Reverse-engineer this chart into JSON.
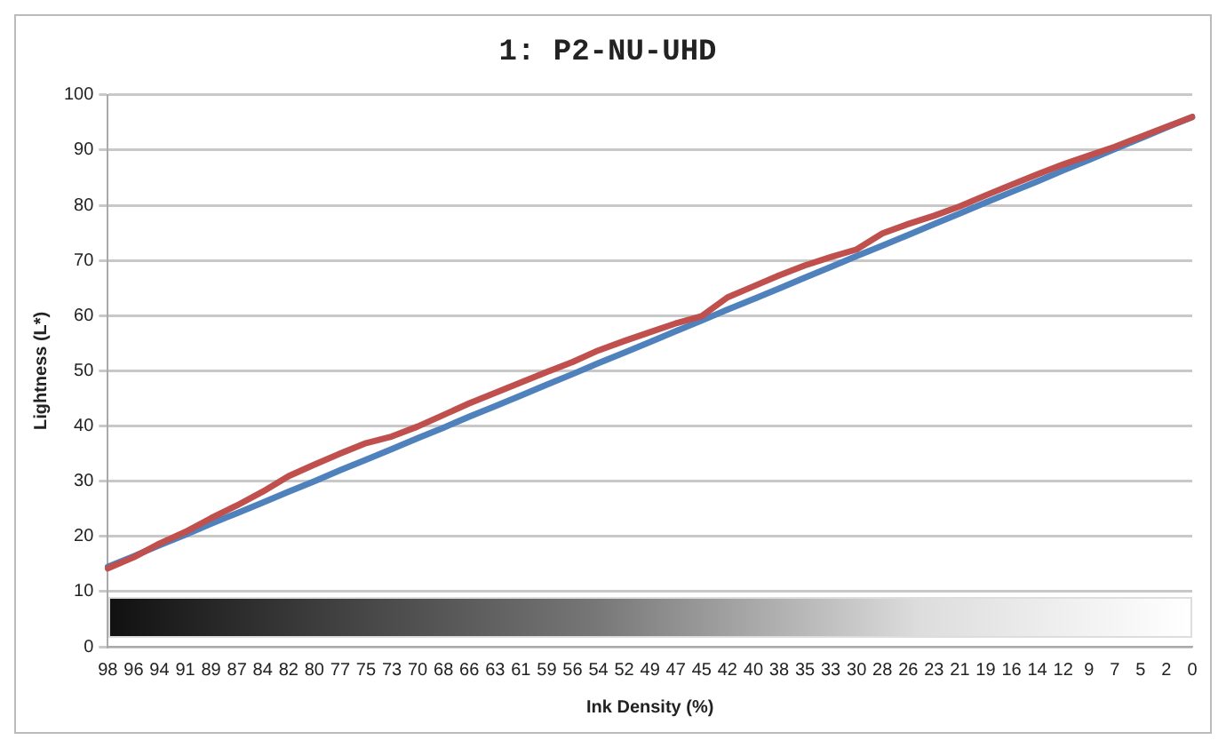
{
  "chart_data": {
    "type": "line",
    "title": "1: P2-NU-UHD",
    "xlabel": "Ink Density (%)",
    "ylabel": "Lightness (L*)",
    "categories": [
      "98",
      "96",
      "94",
      "91",
      "89",
      "87",
      "84",
      "82",
      "80",
      "77",
      "75",
      "73",
      "70",
      "68",
      "66",
      "63",
      "61",
      "59",
      "56",
      "54",
      "52",
      "49",
      "47",
      "45",
      "42",
      "40",
      "38",
      "35",
      "33",
      "30",
      "28",
      "26",
      "23",
      "21",
      "19",
      "16",
      "14",
      "12",
      "9",
      "7",
      "5",
      "2",
      "0"
    ],
    "series": [
      {
        "color": "#c0504d",
        "values": [
          14.2,
          16.2,
          18.7,
          20.8,
          23.3,
          25.6,
          28.1,
          30.9,
          33.0,
          35.0,
          36.9,
          38.1,
          39.9,
          42.0,
          44.1,
          46.0,
          47.9,
          49.8,
          51.6,
          53.7,
          55.4,
          57.0,
          58.6,
          59.9,
          63.3,
          65.3,
          67.3,
          69.1,
          70.6,
          72.0,
          74.9,
          76.6,
          78.1,
          79.8,
          81.8,
          83.7,
          85.6,
          87.4,
          89.0,
          90.6,
          92.4,
          94.2,
          96.0
        ]
      },
      {
        "color": "#4f81bd",
        "values": [
          14.5,
          16.4,
          18.4,
          20.3,
          22.3,
          24.2,
          26.1,
          28.1,
          30.0,
          32.0,
          33.9,
          35.8,
          37.8,
          39.7,
          41.7,
          43.6,
          45.5,
          47.5,
          49.4,
          51.4,
          53.3,
          55.2,
          57.2,
          59.1,
          61.1,
          63.0,
          64.9,
          66.9,
          68.8,
          70.8,
          72.7,
          74.6,
          76.6,
          78.5,
          80.5,
          82.4,
          84.3,
          86.3,
          88.2,
          90.2,
          92.1,
          94.1,
          96.0
        ]
      }
    ],
    "ylim": [
      0,
      100
    ],
    "yticks": [
      0,
      10,
      20,
      30,
      40,
      50,
      60,
      70,
      80,
      90,
      100
    ],
    "grid": "y",
    "legend": false,
    "marker": "none",
    "line_style": "solid"
  }
}
